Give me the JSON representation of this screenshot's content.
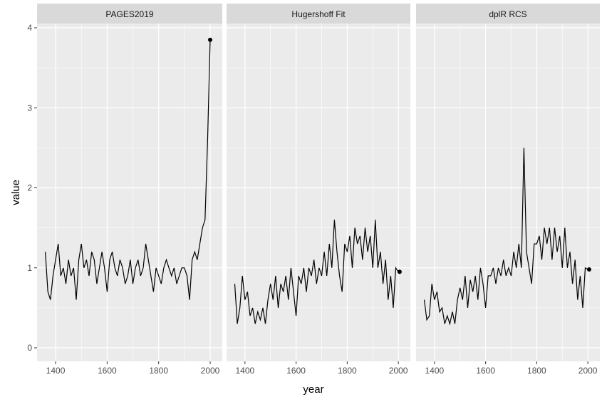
{
  "chart_data": {
    "type": "line",
    "xlabel": "year",
    "ylabel": "value",
    "ylim": [
      -0.2,
      4.3
    ],
    "xlim": [
      1328,
      2047
    ],
    "x_ticks": [
      1400,
      1600,
      1800,
      2000
    ],
    "y_ticks": [
      0,
      1,
      2,
      3,
      4
    ],
    "grid": true,
    "facets": [
      "PAGES2019",
      "Hugershoff Fit",
      "dplR RCS"
    ],
    "x": [
      1360,
      1370,
      1380,
      1390,
      1400,
      1410,
      1420,
      1430,
      1440,
      1450,
      1460,
      1470,
      1480,
      1490,
      1500,
      1510,
      1520,
      1530,
      1540,
      1550,
      1560,
      1570,
      1580,
      1590,
      1600,
      1610,
      1620,
      1630,
      1640,
      1650,
      1660,
      1670,
      1680,
      1690,
      1700,
      1710,
      1720,
      1730,
      1740,
      1750,
      1760,
      1770,
      1780,
      1790,
      1800,
      1810,
      1820,
      1830,
      1840,
      1850,
      1860,
      1870,
      1880,
      1890,
      1900,
      1910,
      1920,
      1930,
      1940,
      1950,
      1960,
      1970,
      1980,
      1990,
      2000
    ],
    "series": [
      {
        "name": "PAGES2019",
        "values": [
          1.2,
          0.7,
          0.6,
          0.9,
          1.1,
          1.3,
          0.9,
          1.0,
          0.8,
          1.1,
          0.9,
          1.0,
          0.6,
          1.1,
          1.3,
          1.0,
          1.1,
          0.9,
          1.2,
          1.1,
          0.8,
          1.0,
          1.2,
          1.0,
          0.7,
          1.1,
          1.2,
          1.0,
          0.9,
          1.1,
          1.0,
          0.8,
          0.9,
          1.1,
          0.8,
          1.0,
          1.1,
          0.9,
          1.0,
          1.3,
          1.1,
          0.9,
          0.7,
          1.0,
          0.9,
          0.8,
          1.0,
          1.1,
          1.0,
          0.9,
          1.0,
          0.8,
          0.9,
          1.0,
          1.0,
          0.9,
          0.6,
          1.1,
          1.2,
          1.1,
          1.3,
          1.5,
          1.6,
          2.6,
          3.85
        ],
        "end_point": [
          2000,
          3.85
        ]
      },
      {
        "name": "Hugershoff Fit",
        "values": [
          0.8,
          0.3,
          0.5,
          0.9,
          0.6,
          0.7,
          0.4,
          0.5,
          0.3,
          0.45,
          0.35,
          0.5,
          0.3,
          0.6,
          0.8,
          0.6,
          0.9,
          0.5,
          0.8,
          0.7,
          0.9,
          0.6,
          1.0,
          0.7,
          0.4,
          0.9,
          0.8,
          1.0,
          0.7,
          1.0,
          0.9,
          1.1,
          0.8,
          1.0,
          0.9,
          1.2,
          0.9,
          1.3,
          1.0,
          1.6,
          1.2,
          0.9,
          0.7,
          1.3,
          1.2,
          1.4,
          1.0,
          1.5,
          1.3,
          1.4,
          1.1,
          1.5,
          1.2,
          1.4,
          1.0,
          1.6,
          1.0,
          1.2,
          0.8,
          1.1,
          0.6,
          0.9,
          0.5,
          1.0,
          0.95
        ],
        "end_point": [
          2005,
          0.95
        ]
      },
      {
        "name": "dplR RCS",
        "values": [
          0.6,
          0.35,
          0.4,
          0.8,
          0.6,
          0.7,
          0.45,
          0.5,
          0.3,
          0.4,
          0.3,
          0.45,
          0.3,
          0.6,
          0.75,
          0.6,
          0.9,
          0.5,
          0.85,
          0.7,
          0.9,
          0.6,
          1.0,
          0.8,
          0.5,
          0.9,
          0.9,
          1.0,
          0.8,
          1.0,
          0.9,
          1.1,
          0.9,
          1.0,
          0.9,
          1.2,
          1.0,
          1.3,
          1.0,
          2.5,
          1.2,
          1.0,
          0.8,
          1.3,
          1.3,
          1.4,
          1.1,
          1.5,
          1.3,
          1.5,
          1.1,
          1.5,
          1.2,
          1.4,
          1.0,
          1.5,
          1.0,
          1.2,
          0.8,
          1.1,
          0.6,
          0.9,
          0.5,
          1.0,
          0.98
        ],
        "end_point": [
          2005,
          0.98
        ]
      }
    ]
  }
}
